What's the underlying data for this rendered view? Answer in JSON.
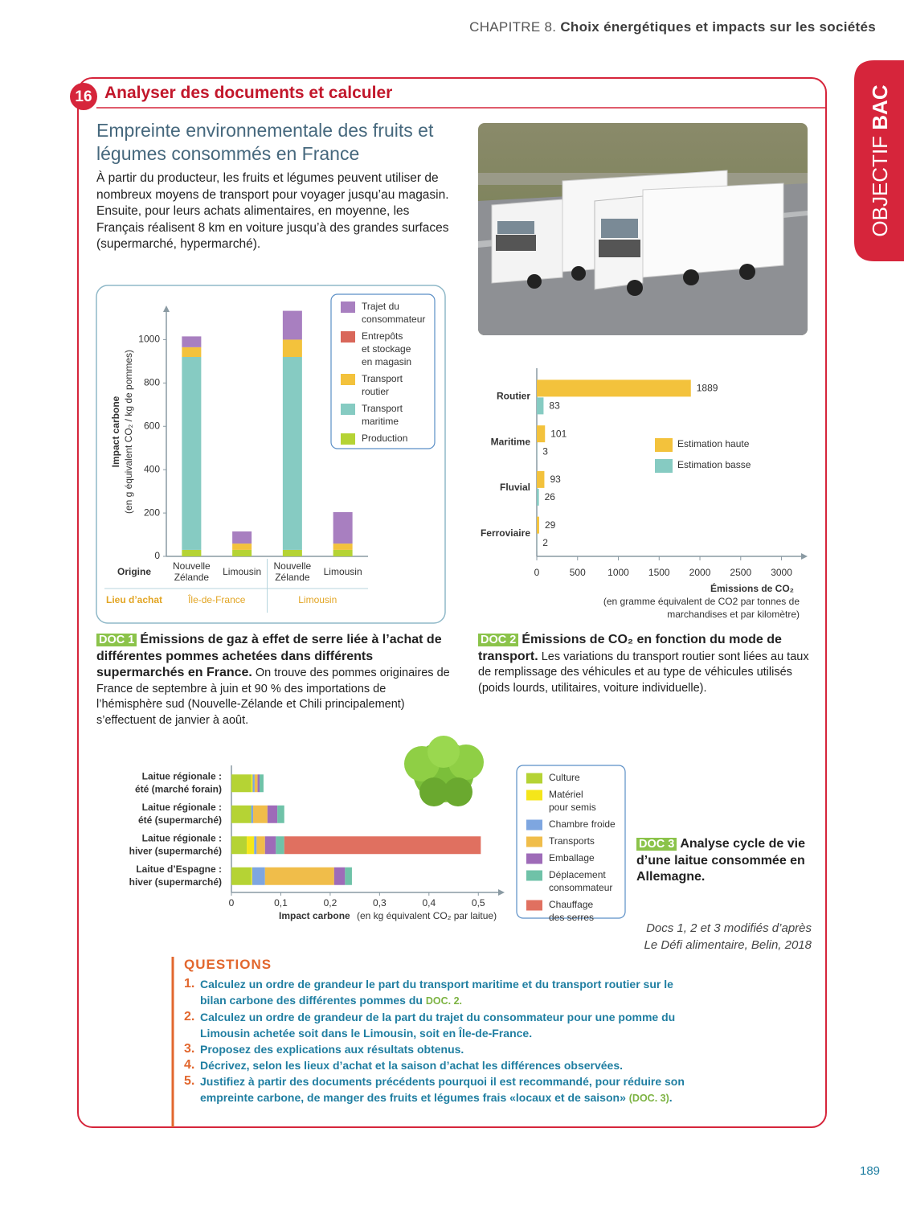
{
  "header": {
    "chapter": "CHAPITRE 8.",
    "title": "Choix énergétiques et impacts sur les sociétés"
  },
  "side_tab": {
    "word1": "OBJECTIF",
    "word2": "BAC"
  },
  "exercise": {
    "number": "16",
    "title": "Analyser des documents et calculer",
    "heading": "Empreinte environnementale des fruits et légumes consommés en France",
    "intro": "À partir du producteur, les fruits et légumes peuvent utiliser de nombreux moyens de transport pour voyager jusqu’au magasin. Ensuite, pour leurs achats alimentaires, en moyenne, les Français réalisent 8 km en voiture jusqu’à des grandes surfaces (supermarché, hypermarché)."
  },
  "docs": [
    {
      "tag": "DOC 1",
      "title": "Émissions de gaz à effet de serre liée à l’achat de différentes pommes achetées dans différents supermarchés en France.",
      "text": "On trouve des pommes originaires de France de septembre à juin et 90 % des importations de l’hémisphère sud (Nouvelle-Zélande et Chili principalement) s’effectuent de janvier à août."
    },
    {
      "tag": "DOC 2",
      "title": "Émissions de CO₂ en fonction du mode de transport.",
      "text": "Les variations du transport routier sont liées au taux de remplissage des véhicules et au type de véhicules utilisés (poids lourds, utilitaires, voiture individuelle)."
    },
    {
      "tag": "DOC 3",
      "title": "Analyse cycle de vie d’une laitue consommée en Allemagne."
    }
  ],
  "credit": {
    "line1": "Docs 1, 2 et 3 modifiés d’après",
    "line2": "Le Défi alimentaire, Belin, 2018"
  },
  "questions": {
    "title": "QUESTIONS",
    "items": [
      {
        "number": "1.",
        "text": "Calculez un ordre de grandeur le part du transport maritime et du transport routier sur le bilan carbone des différentes pommes du",
        "ref": "DOC. 2."
      },
      {
        "number": "2.",
        "text": "Calculez un ordre de grandeur de la part du trajet du consommateur pour une pomme du Limousin achetée soit dans le Limousin, soit en Île-de-France."
      },
      {
        "number": "3.",
        "text": "Proposez des explications aux résultats obtenus."
      },
      {
        "number": "4.",
        "text": "Décrivez, selon les lieux d’achat et la saison d’achat les différences observées."
      },
      {
        "number": "5.",
        "text": "Justifiez à partir des documents précédents pourquoi il est recommandé, pour réduire son empreinte carbone, de manger des fruits et légumes frais «locaux et de saison»",
        "ref": "(DOC. 3)",
        "after": "."
      }
    ]
  },
  "page_number": "189",
  "chart_data": [
    {
      "type": "stacked_bar",
      "orientation": "vertical",
      "y_label": "Impact carbone",
      "y_sublabel": "(en g équivalent CO₂ / kg de pommes)",
      "category_axis_label": "Origine",
      "categories": [
        "Nouvelle Zélande",
        "Limousin",
        "Nouvelle Zélande",
        "Limousin"
      ],
      "group_axis_label": "Lieu d’achat",
      "groups": [
        "Île-de-France",
        "Limousin"
      ],
      "ylim": [
        0,
        1150
      ],
      "yticks": [
        0,
        200,
        400,
        600,
        800,
        1000
      ],
      "series": [
        {
          "name": "Production",
          "color": "#b5d334",
          "values": [
            30,
            30,
            30,
            30
          ]
        },
        {
          "name": "Transport maritime",
          "color": "#86cbc2",
          "values": [
            890,
            0,
            890,
            0
          ]
        },
        {
          "name": "Transport routier",
          "color": "#f3c23c",
          "values": [
            45,
            29,
            80,
            29
          ]
        },
        {
          "name": "Entrepôts et stockage en magasin",
          "color": "#d9675a",
          "values": [
            0,
            0,
            0,
            0
          ]
        },
        {
          "name": "Trajet du consommateur",
          "color": "#a87fc0",
          "values": [
            50,
            56,
            133,
            145
          ]
        }
      ]
    },
    {
      "type": "bar",
      "orientation": "horizontal",
      "categories": [
        "Routier",
        "Maritime",
        "Fluvial",
        "Ferroviaire"
      ],
      "x_label": "Émissions de CO₂",
      "x_sublabel": "(en gramme équivalent de CO2 par tonnes de marchandises et par kilomètre)",
      "xlim": [
        0,
        3300
      ],
      "xticks": [
        0,
        500,
        1000,
        1500,
        2000,
        2500,
        3000
      ],
      "series": [
        {
          "name": "Estimation haute",
          "color": "#f3c23c",
          "values": [
            1889,
            101,
            93,
            29
          ]
        },
        {
          "name": "Estimation basse",
          "color": "#86cbc2",
          "values": [
            83,
            3,
            26,
            2
          ]
        }
      ]
    },
    {
      "type": "stacked_bar",
      "orientation": "horizontal",
      "categories": [
        "Laitue régionale : été (marché forain)",
        "Laitue régionale : été (supermarché)",
        "Laitue régionale : hiver (supermarché)",
        "Laitue d’Espagne : hiver (supermarché)"
      ],
      "x_label": "Impact carbone",
      "x_sublabel": "(en kg équivalent CO₂ par laitue)",
      "xlim": [
        0,
        0.55
      ],
      "xticks": [
        0,
        {
          "value": 0.1,
          "label": "0,1"
        },
        {
          "value": 0.2,
          "label": "0,2"
        },
        {
          "value": 0.3,
          "label": "0,3"
        },
        {
          "value": 0.4,
          "label": "0,4"
        },
        {
          "value": 0.5,
          "label": "0,5"
        }
      ],
      "series": [
        {
          "name": "Culture",
          "color": "#b5d334",
          "values": [
            0.04,
            0.04,
            0.031,
            0.04
          ]
        },
        {
          "name": "Matériel pour semis",
          "color": "#f5e61a",
          "values": [
            0.003,
            0,
            0.015,
            0.002
          ]
        },
        {
          "name": "Chambre froide",
          "color": "#7ea6e0",
          "values": [
            0.004,
            0.004,
            0.005,
            0.026
          ]
        },
        {
          "name": "Transports",
          "color": "#f0bd4a",
          "values": [
            0.006,
            0.029,
            0.017,
            0.14
          ]
        },
        {
          "name": "Emballage",
          "color": "#9e6bb8",
          "values": [
            0.004,
            0.02,
            0.022,
            0.022
          ]
        },
        {
          "name": "Déplacement consommateur",
          "color": "#6fc2a8",
          "values": [
            0.008,
            0.014,
            0.017,
            0.014
          ]
        },
        {
          "name": "Chauffage des serres",
          "color": "#e07060",
          "values": [
            0,
            0,
            0.398,
            0
          ]
        }
      ]
    }
  ]
}
